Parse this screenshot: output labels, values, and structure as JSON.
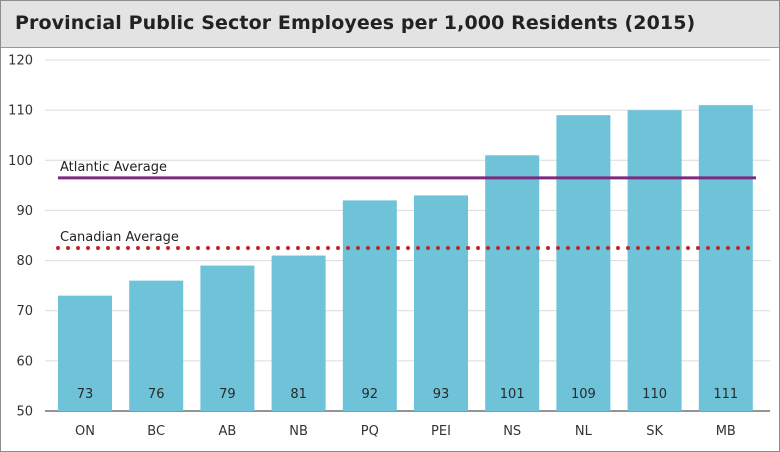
{
  "chart_data": {
    "type": "bar",
    "title": "Provincial Public Sector Employees per 1,000 Residents (2015)",
    "xlabel": "",
    "ylabel": "",
    "ylim": [
      50,
      120
    ],
    "yticks": [
      50,
      60,
      70,
      80,
      90,
      100,
      110,
      120
    ],
    "categories": [
      "ON",
      "BC",
      "AB",
      "NB",
      "PQ",
      "PEI",
      "NS",
      "NL",
      "SK",
      "MB"
    ],
    "values": [
      73,
      76,
      79,
      81,
      92,
      93,
      101,
      109,
      110,
      111
    ],
    "bar_labels": [
      "73",
      "76",
      "79",
      "81",
      "92",
      "93",
      "101",
      "109",
      "110",
      "111"
    ],
    "reference_lines": [
      {
        "label": "Atlantic Average",
        "value": 96.5,
        "style": "solid",
        "color": "#7b2a7e"
      },
      {
        "label": "Canadian Average",
        "value": 82.5,
        "style": "dotted",
        "color": "#c0262c"
      }
    ],
    "grid": true,
    "bar_color": "#6ec3d8"
  }
}
